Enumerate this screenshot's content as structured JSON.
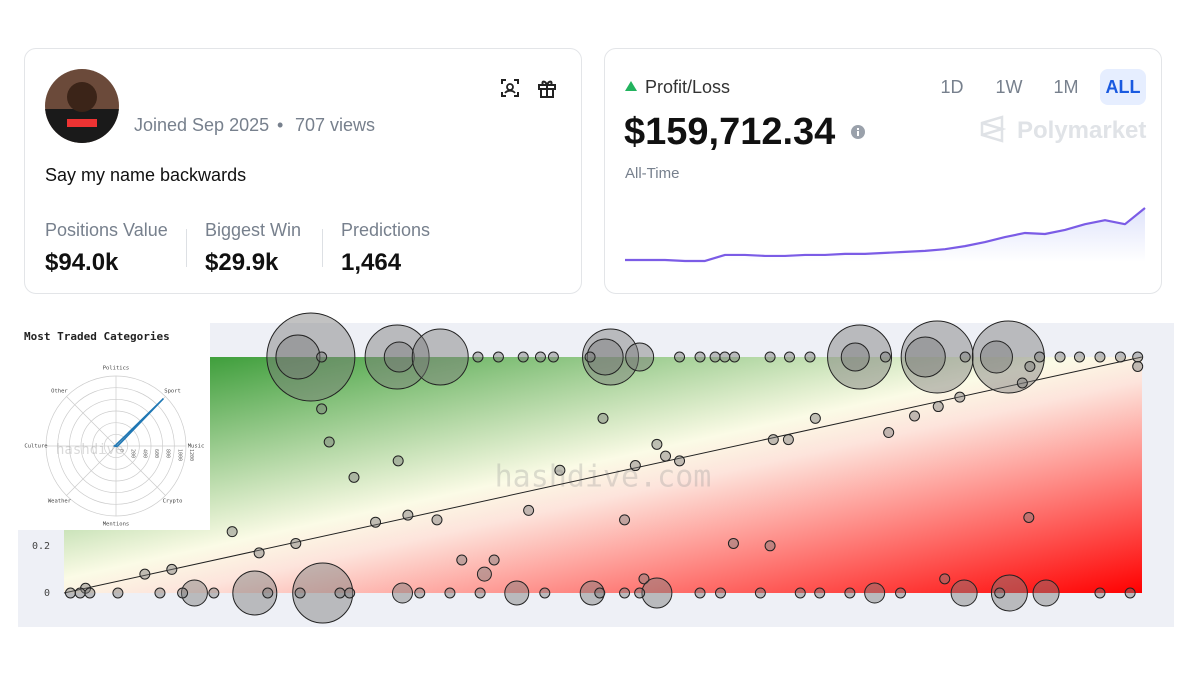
{
  "profile": {
    "joined": "Joined Sep 2025",
    "views": "707 views",
    "bio": "Say my name backwards",
    "stats": [
      {
        "label": "Positions Value",
        "value": "$94.0k"
      },
      {
        "label": "Biggest Win",
        "value": "$29.9k"
      },
      {
        "label": "Predictions",
        "value": "1,464"
      }
    ]
  },
  "pnl": {
    "label": "Profit/Loss",
    "value": "$159,712.34",
    "period": "All-Time",
    "tabs": [
      "1D",
      "1W",
      "1M",
      "ALL"
    ],
    "selected_tab": 3,
    "brand": "Polymarket",
    "chart": {
      "type": "line",
      "color": "#7b5ce6",
      "ylim": [
        0,
        160000
      ],
      "values": [
        6000,
        6000,
        6000,
        3000,
        3000,
        21000,
        21000,
        18000,
        18000,
        21000,
        21000,
        24000,
        24000,
        27000,
        30000,
        33000,
        38000,
        47000,
        59000,
        74000,
        86000,
        83000,
        95000,
        112000,
        124000,
        112000,
        160000
      ]
    }
  },
  "chart_data": [
    {
      "type": "scatter",
      "watermark": "hashdive.com",
      "xlim": [
        0,
        100
      ],
      "ylim": [
        0,
        1
      ],
      "yticks": [
        0,
        0.2
      ],
      "series": [
        {
          "x": [
            22.9,
            21.7,
            30.9,
            31.1,
            34.9,
            50.7,
            50.2,
            53.4,
            73.8,
            73.4,
            81.0,
            79.9,
            87.6,
            86.5,
            23.9,
            38.4,
            40.3,
            42.6,
            44.2,
            45.4,
            48.8,
            57.1,
            59.0,
            60.4,
            61.3,
            62.2,
            65.5,
            67.3,
            69.2,
            76.2,
            83.6,
            90.5,
            92.4,
            94.2,
            96.1,
            98.0,
            99.6,
            23.9,
            50.0,
            69.7,
            24.6,
            55.0,
            31.0,
            26.9,
            46.0,
            53.0,
            55.8,
            57.1,
            65.8,
            67.2,
            76.5,
            78.9,
            81.1,
            83.1,
            88.9,
            89.6,
            99.6,
            28.9,
            31.9,
            34.6,
            43.1,
            52.0,
            62.1,
            65.5,
            89.5,
            15.6,
            18.1,
            21.5,
            36.9,
            39.9,
            7.5,
            10.0,
            39.0,
            53.8,
            81.7,
            2.0,
            24.0,
            17.7,
            12.1,
            31.4,
            42.0,
            49.0,
            55.0,
            75.2,
            83.5,
            87.7,
            91.1,
            0.6,
            1.5,
            2.4,
            5.0,
            8.9,
            11.0,
            13.9,
            18.9,
            21.9,
            25.6,
            26.5,
            33.0,
            35.8,
            38.6,
            44.6,
            49.7,
            52.0,
            53.4,
            59.0,
            60.9,
            64.6,
            68.3,
            70.1,
            72.9,
            77.6,
            86.8,
            96.1,
            98.9
          ],
          "y": [
            1,
            1,
            1,
            1,
            1,
            1,
            1,
            1,
            1,
            1,
            1,
            1,
            1,
            1,
            1,
            1,
            1,
            1,
            1,
            1,
            1,
            1,
            1,
            1,
            1,
            1,
            1,
            1,
            1,
            1,
            1,
            1,
            1,
            1,
            1,
            1,
            1,
            0.78,
            0.74,
            0.74,
            0.64,
            0.63,
            0.56,
            0.49,
            0.52,
            0.54,
            0.58,
            0.56,
            0.65,
            0.65,
            0.68,
            0.75,
            0.79,
            0.83,
            0.89,
            0.96,
            0.96,
            0.3,
            0.33,
            0.31,
            0.35,
            0.31,
            0.21,
            0.2,
            0.32,
            0.26,
            0.17,
            0.21,
            0.14,
            0.14,
            0.08,
            0.1,
            0.08,
            0.06,
            0.06,
            0.02,
            0,
            0,
            0,
            0,
            0,
            0,
            0,
            0,
            0,
            0,
            0,
            0,
            0,
            0,
            0,
            0,
            0,
            0,
            0,
            0,
            0,
            0,
            0,
            0,
            0,
            0,
            0,
            0,
            0,
            0,
            0,
            0,
            0,
            0,
            0,
            0,
            0,
            0,
            0
          ],
          "sizes": [
            44,
            22,
            32,
            15,
            28,
            28,
            18,
            14,
            32,
            14,
            36,
            20,
            36,
            16,
            5,
            5,
            5,
            5,
            5,
            5,
            5,
            5,
            5,
            5,
            5,
            5,
            5,
            5,
            5,
            5,
            5,
            5,
            5,
            5,
            5,
            5,
            5,
            5,
            5,
            5,
            5,
            5,
            5,
            5,
            5,
            5,
            5,
            5,
            5,
            5,
            5,
            5,
            5,
            5,
            5,
            5,
            5,
            5,
            5,
            5,
            5,
            5,
            5,
            5,
            5,
            5,
            5,
            5,
            5,
            5,
            5,
            5,
            7,
            5,
            5,
            5,
            30,
            22,
            13,
            10,
            12,
            12,
            15,
            10,
            13,
            18,
            13,
            5,
            5,
            5,
            5,
            5,
            5,
            5,
            5,
            5,
            5,
            5,
            5,
            5,
            5,
            5,
            5,
            5,
            5,
            5,
            5,
            5,
            5,
            5,
            5,
            5,
            5,
            5,
            5
          ]
        }
      ]
    },
    {
      "type": "polar",
      "title": "Most Traded Categories",
      "watermark": "hashdive",
      "color": "#1f77b4",
      "categories": [
        "Politics",
        "Sport",
        "Music",
        "Crypto",
        "Mentions",
        "Weather",
        "Culture",
        "Other"
      ],
      "values": [
        20,
        1150,
        30,
        10,
        5,
        5,
        40,
        10
      ],
      "rlim": [
        0,
        1200
      ],
      "rticks": [
        0,
        200,
        400,
        600,
        800,
        1000,
        1200
      ]
    }
  ]
}
